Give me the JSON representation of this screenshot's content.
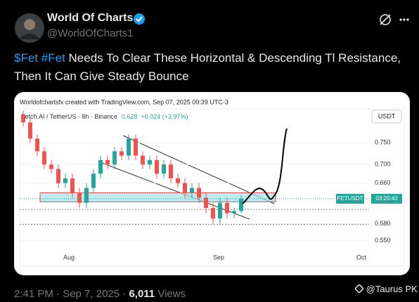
{
  "post": {
    "author_name": "World Of Charts",
    "handle": "@WorldOfCharts1",
    "cashtag": "$Fet",
    "hashtag": "#Fet",
    "text_line1": "Needs To Clear These Horizontal & Descending Tl Resistance,",
    "text_line2": "Then It Can Give Steady Bounce",
    "time_line": "2:41 PM · Sep 7, 2025 ·",
    "views": "6,011",
    "views_label": "Views",
    "watermark": "@Taurus PK"
  },
  "chart_data": {
    "type": "candlestick",
    "credit": "Worldofchartsfx created with TradingView.com, Sep 07, 2025 09:39 UTC-3",
    "symbol_info": "Fetch.AI / TetherUS · 8h · Binance",
    "last_price": 0.628,
    "change": "+0.024 (+3.97%)",
    "currency": "USDT",
    "symbol": "FETUSDT",
    "countdown": "03:20:40",
    "xtick_labels": [
      "Aug",
      "Sep",
      "Oct"
    ],
    "open": [
      0.82,
      0.8,
      0.76,
      0.73,
      0.7,
      0.69,
      0.66,
      0.67,
      0.64,
      0.62,
      0.65,
      0.68,
      0.71,
      0.7,
      0.73,
      0.72,
      0.76,
      0.72,
      0.7,
      0.71,
      0.68,
      0.7,
      0.67,
      0.66,
      0.64,
      0.65,
      0.63,
      0.61,
      0.59,
      0.62,
      0.6,
      0.604
    ],
    "high": [
      0.83,
      0.81,
      0.77,
      0.74,
      0.71,
      0.7,
      0.68,
      0.68,
      0.65,
      0.66,
      0.69,
      0.72,
      0.72,
      0.74,
      0.74,
      0.77,
      0.77,
      0.73,
      0.72,
      0.72,
      0.71,
      0.71,
      0.68,
      0.67,
      0.66,
      0.66,
      0.64,
      0.62,
      0.63,
      0.63,
      0.61,
      0.635
    ],
    "low": [
      0.79,
      0.75,
      0.72,
      0.69,
      0.68,
      0.65,
      0.65,
      0.63,
      0.61,
      0.61,
      0.64,
      0.67,
      0.69,
      0.69,
      0.71,
      0.71,
      0.71,
      0.69,
      0.69,
      0.67,
      0.67,
      0.66,
      0.65,
      0.63,
      0.63,
      0.62,
      0.6,
      0.58,
      0.58,
      0.59,
      0.59,
      0.6
    ],
    "close": [
      0.8,
      0.76,
      0.73,
      0.7,
      0.69,
      0.66,
      0.67,
      0.64,
      0.62,
      0.65,
      0.68,
      0.71,
      0.7,
      0.73,
      0.72,
      0.76,
      0.72,
      0.7,
      0.71,
      0.68,
      0.7,
      0.67,
      0.66,
      0.64,
      0.65,
      0.63,
      0.61,
      0.59,
      0.62,
      0.6,
      0.604,
      0.628
    ],
    "up_color": "#26a69a",
    "down_color": "#ef5350",
    "zone": [
      0.622,
      0.64
    ],
    "dotted_levels": [
      0.607,
      0.579
    ],
    "ylim": [
      0.535,
      0.835
    ],
    "log": true,
    "yticks": [
      {
        "value": 0.75,
        "label": "0.750"
      },
      {
        "value": 0.7,
        "label": "0.700"
      },
      {
        "value": 0.66,
        "label": "0.660"
      },
      {
        "value": 0.58,
        "label": "0.580"
      },
      {
        "value": 0.55,
        "label": "0.550"
      }
    ]
  }
}
